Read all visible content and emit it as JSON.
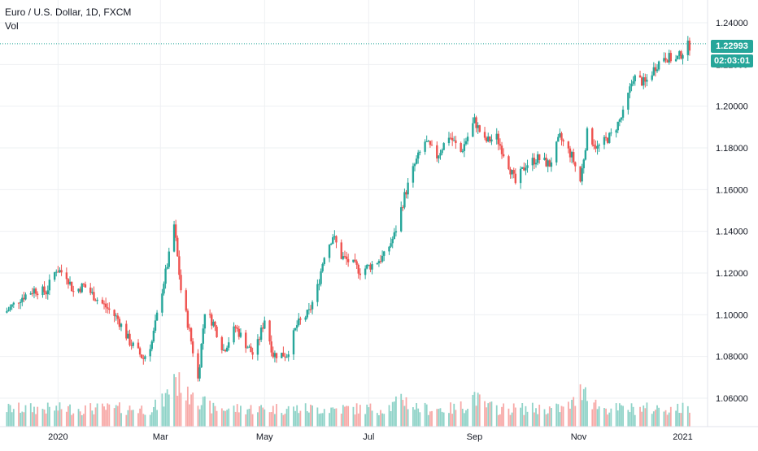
{
  "header": {
    "symbol_title": "Euro / U.S. Dollar, 1D, FXCM",
    "volume_label": "Vol"
  },
  "price_tag": {
    "value": "1.22993",
    "countdown": "02:03:01"
  },
  "colors": {
    "up": "#26a69a",
    "down": "#ef5350",
    "up_volume": "#8fd3c8",
    "down_volume": "#f7a9a7",
    "grid": "#eef0f3",
    "axis_text": "#131722",
    "last_price_line": "#26a69a"
  },
  "chart_data": {
    "type": "candlestick",
    "title": "Euro / U.S. Dollar, 1D, FXCM",
    "y_axis_ticks": [
      "1.24000",
      "1.22000",
      "1.20000",
      "1.18000",
      "1.16000",
      "1.14000",
      "1.12000",
      "1.10000",
      "1.08000",
      "1.06000"
    ],
    "ylim": [
      1.05,
      1.245
    ],
    "x_axis_ticks": [
      "2020",
      "Mar",
      "May",
      "Jul",
      "Sep",
      "Nov",
      "2021"
    ],
    "xlim": [
      "2019-11-28",
      "2021-01-06"
    ],
    "last_price": 1.22993,
    "grid": true,
    "price_path": [
      [
        "2019-12-01",
        1.101
      ],
      [
        "2019-12-10",
        1.108
      ],
      [
        "2019-12-18",
        1.112
      ],
      [
        "2019-12-25",
        1.111
      ],
      [
        "2019-12-31",
        1.122
      ],
      [
        "2020-01-06",
        1.119
      ],
      [
        "2020-01-10",
        1.111
      ],
      [
        "2020-01-16",
        1.114
      ],
      [
        "2020-01-22",
        1.109
      ],
      [
        "2020-01-30",
        1.103
      ],
      [
        "2020-02-05",
        1.098
      ],
      [
        "2020-02-12",
        1.087
      ],
      [
        "2020-02-20",
        1.079
      ],
      [
        "2020-02-25",
        1.087
      ],
      [
        "2020-03-02",
        1.112
      ],
      [
        "2020-03-06",
        1.128
      ],
      [
        "2020-03-09",
        1.143
      ],
      [
        "2020-03-13",
        1.112
      ],
      [
        "2020-03-18",
        1.092
      ],
      [
        "2020-03-23",
        1.069
      ],
      [
        "2020-03-27",
        1.102
      ],
      [
        "2020-04-01",
        1.096
      ],
      [
        "2020-04-07",
        1.083
      ],
      [
        "2020-04-14",
        1.094
      ],
      [
        "2020-04-20",
        1.086
      ],
      [
        "2020-04-25",
        1.08
      ],
      [
        "2020-05-01",
        1.098
      ],
      [
        "2020-05-06",
        1.081
      ],
      [
        "2020-05-14",
        1.081
      ],
      [
        "2020-05-20",
        1.095
      ],
      [
        "2020-05-27",
        1.101
      ],
      [
        "2020-06-01",
        1.113
      ],
      [
        "2020-06-05",
        1.129
      ],
      [
        "2020-06-10",
        1.138
      ],
      [
        "2020-06-15",
        1.128
      ],
      [
        "2020-06-22",
        1.124
      ],
      [
        "2020-06-26",
        1.121
      ],
      [
        "2020-07-03",
        1.124
      ],
      [
        "2020-07-10",
        1.128
      ],
      [
        "2020-07-16",
        1.138
      ],
      [
        "2020-07-22",
        1.157
      ],
      [
        "2020-07-28",
        1.172
      ],
      [
        "2020-08-03",
        1.183
      ],
      [
        "2020-08-10",
        1.176
      ],
      [
        "2020-08-17",
        1.186
      ],
      [
        "2020-08-24",
        1.178
      ],
      [
        "2020-09-01",
        1.193
      ],
      [
        "2020-09-07",
        1.183
      ],
      [
        "2020-09-14",
        1.185
      ],
      [
        "2020-09-21",
        1.172
      ],
      [
        "2020-09-25",
        1.163
      ],
      [
        "2020-10-01",
        1.172
      ],
      [
        "2020-10-08",
        1.175
      ],
      [
        "2020-10-15",
        1.172
      ],
      [
        "2020-10-21",
        1.185
      ],
      [
        "2020-10-28",
        1.176
      ],
      [
        "2020-11-02",
        1.164
      ],
      [
        "2020-11-06",
        1.187
      ],
      [
        "2020-11-12",
        1.18
      ],
      [
        "2020-11-20",
        1.186
      ],
      [
        "2020-11-27",
        1.196
      ],
      [
        "2020-12-03",
        1.214
      ],
      [
        "2020-12-10",
        1.211
      ],
      [
        "2020-12-16",
        1.219
      ],
      [
        "2020-12-21",
        1.224
      ],
      [
        "2020-12-28",
        1.222
      ],
      [
        "2021-01-04",
        1.229
      ]
    ],
    "volume_spikes": [
      [
        "2020-03-09",
        3.2
      ],
      [
        "2020-03-13",
        2.7
      ],
      [
        "2020-03-20",
        2.4
      ],
      [
        "2020-11-04",
        2.5
      ],
      [
        "2020-09-01",
        1.8
      ],
      [
        "2020-07-21",
        1.7
      ]
    ]
  }
}
